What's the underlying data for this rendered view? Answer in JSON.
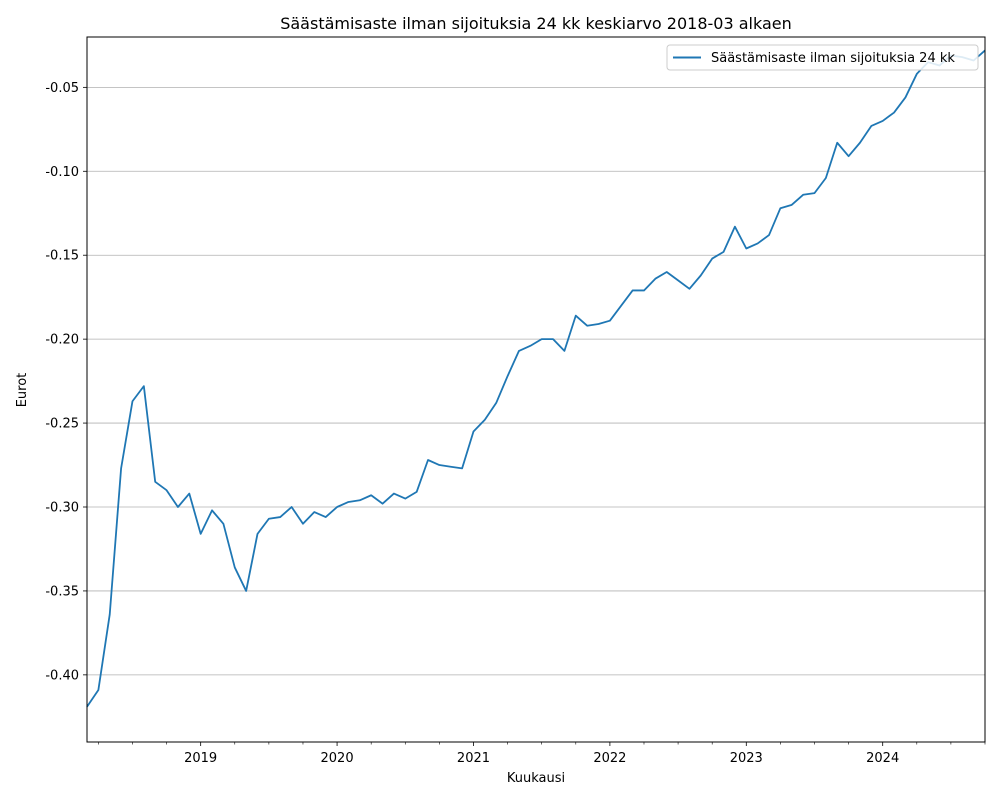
{
  "chart_data": {
    "type": "line",
    "title": "Säästämisaste ilman sijoituksia 24 kk keskiarvo 2018-03 alkaen",
    "xlabel": "Kuukausi",
    "ylabel": "Eurot",
    "ylim": [
      -0.44,
      -0.02
    ],
    "xlim": [
      "2018-03",
      "2024-10"
    ],
    "grid": "horizontal",
    "legend_position": "top-right",
    "x_ticks": [
      "2019",
      "2020",
      "2021",
      "2022",
      "2023",
      "2024"
    ],
    "y_ticks": [
      "-0.40",
      "-0.35",
      "-0.30",
      "-0.25",
      "-0.20",
      "-0.15",
      "-0.10",
      "-0.05"
    ],
    "line_color": "#1f77b4",
    "series": [
      {
        "name": "Säästämisaste ilman sijoituksia 24 kk",
        "points": [
          [
            "2018-03",
            -0.419
          ],
          [
            "2018-04",
            -0.409
          ],
          [
            "2018-05",
            -0.364
          ],
          [
            "2018-06",
            -0.277
          ],
          [
            "2018-07",
            -0.237
          ],
          [
            "2018-08",
            -0.228
          ],
          [
            "2018-09",
            -0.285
          ],
          [
            "2018-10",
            -0.29
          ],
          [
            "2018-11",
            -0.3
          ],
          [
            "2018-12",
            -0.292
          ],
          [
            "2019-01",
            -0.316
          ],
          [
            "2019-02",
            -0.302
          ],
          [
            "2019-03",
            -0.31
          ],
          [
            "2019-04",
            -0.336
          ],
          [
            "2019-05",
            -0.35
          ],
          [
            "2019-06",
            -0.316
          ],
          [
            "2019-07",
            -0.307
          ],
          [
            "2019-08",
            -0.306
          ],
          [
            "2019-09",
            -0.3
          ],
          [
            "2019-10",
            -0.31
          ],
          [
            "2019-11",
            -0.303
          ],
          [
            "2019-12",
            -0.306
          ],
          [
            "2020-01",
            -0.3
          ],
          [
            "2020-02",
            -0.297
          ],
          [
            "2020-03",
            -0.296
          ],
          [
            "2020-04",
            -0.293
          ],
          [
            "2020-05",
            -0.298
          ],
          [
            "2020-06",
            -0.292
          ],
          [
            "2020-07",
            -0.295
          ],
          [
            "2020-08",
            -0.291
          ],
          [
            "2020-09",
            -0.272
          ],
          [
            "2020-10",
            -0.275
          ],
          [
            "2020-11",
            -0.276
          ],
          [
            "2020-12",
            -0.277
          ],
          [
            "2021-01",
            -0.255
          ],
          [
            "2021-02",
            -0.248
          ],
          [
            "2021-03",
            -0.238
          ],
          [
            "2021-04",
            -0.222
          ],
          [
            "2021-05",
            -0.207
          ],
          [
            "2021-06",
            -0.204
          ],
          [
            "2021-07",
            -0.2
          ],
          [
            "2021-08",
            -0.2
          ],
          [
            "2021-09",
            -0.207
          ],
          [
            "2021-10",
            -0.186
          ],
          [
            "2021-11",
            -0.192
          ],
          [
            "2021-12",
            -0.191
          ],
          [
            "2022-01",
            -0.189
          ],
          [
            "2022-02",
            -0.18
          ],
          [
            "2022-03",
            -0.171
          ],
          [
            "2022-04",
            -0.171
          ],
          [
            "2022-05",
            -0.164
          ],
          [
            "2022-06",
            -0.16
          ],
          [
            "2022-07",
            -0.165
          ],
          [
            "2022-08",
            -0.17
          ],
          [
            "2022-09",
            -0.162
          ],
          [
            "2022-10",
            -0.152
          ],
          [
            "2022-11",
            -0.148
          ],
          [
            "2022-12",
            -0.133
          ],
          [
            "2023-01",
            -0.146
          ],
          [
            "2023-02",
            -0.143
          ],
          [
            "2023-03",
            -0.138
          ],
          [
            "2023-04",
            -0.122
          ],
          [
            "2023-05",
            -0.12
          ],
          [
            "2023-06",
            -0.114
          ],
          [
            "2023-07",
            -0.113
          ],
          [
            "2023-08",
            -0.104
          ],
          [
            "2023-09",
            -0.083
          ],
          [
            "2023-10",
            -0.091
          ],
          [
            "2023-11",
            -0.083
          ],
          [
            "2023-12",
            -0.073
          ],
          [
            "2024-01",
            -0.07
          ],
          [
            "2024-02",
            -0.065
          ],
          [
            "2024-03",
            -0.056
          ],
          [
            "2024-04",
            -0.042
          ],
          [
            "2024-05",
            -0.035
          ],
          [
            "2024-06",
            -0.037
          ],
          [
            "2024-07",
            -0.031
          ],
          [
            "2024-08",
            -0.032
          ],
          [
            "2024-09",
            -0.034
          ],
          [
            "2024-10",
            -0.028
          ]
        ]
      }
    ]
  }
}
